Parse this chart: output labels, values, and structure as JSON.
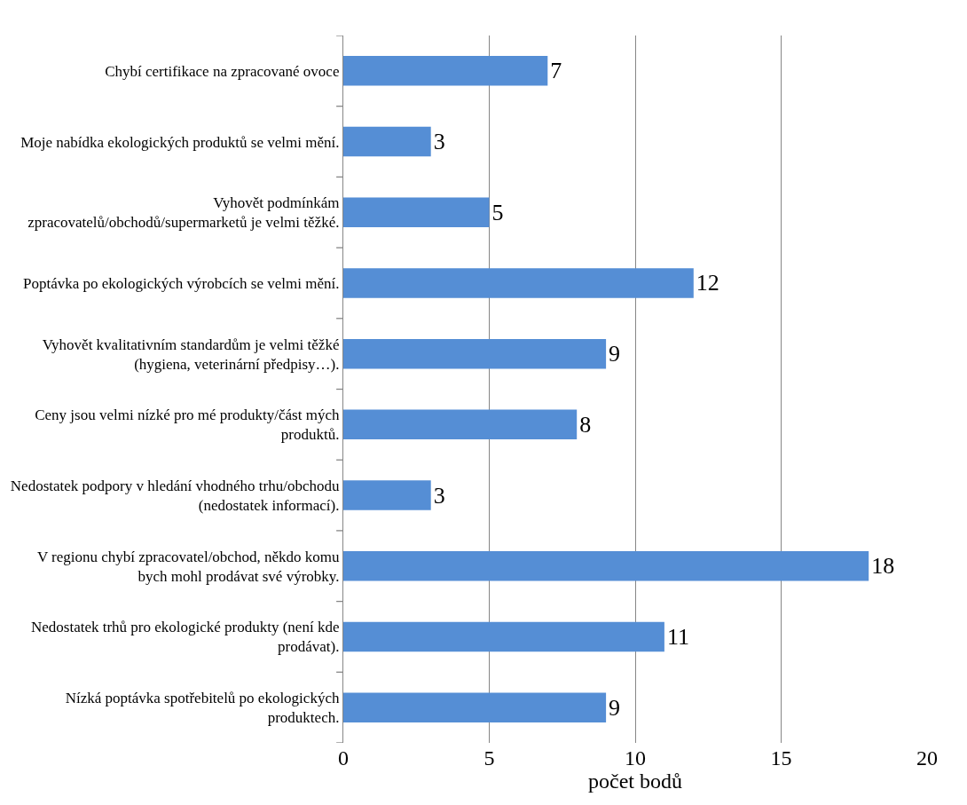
{
  "chart_data": {
    "type": "bar",
    "orientation": "horizontal",
    "xlabel": "počet bodů",
    "categories": [
      "Chybí certifikace na zpracované ovoce",
      "Moje nabídka ekologických produktů se velmi mění.",
      "Vyhovět podmínkám zpracovatelů/obchodů/supermarketů je velmi těžké.",
      "Poptávka po ekologických výrobcích se velmi mění.",
      "Vyhovět kvalitativním standardům je velmi těžké (hygiena, veterinární předpisy…).",
      "Ceny jsou velmi nízké pro mé produkty/část mých produktů.",
      "Nedostatek podpory v hledání vhodného trhu/obchodu (nedostatek informací).",
      "V regionu chybí zpracovatel/obchod, někdo komu bych mohl prodávat své výrobky.",
      "Nedostatek trhů pro ekologické produkty (není kde prodávat).",
      "Nízká poptávka spotřebitelů po ekologických produktech."
    ],
    "values": [
      7,
      3,
      5,
      12,
      9,
      8,
      3,
      18,
      11,
      9
    ],
    "color": "#558ed5",
    "xlim": [
      0,
      20
    ],
    "xticks": [
      0,
      5,
      10,
      15,
      20
    ],
    "grid": "x",
    "data_labels": true
  }
}
